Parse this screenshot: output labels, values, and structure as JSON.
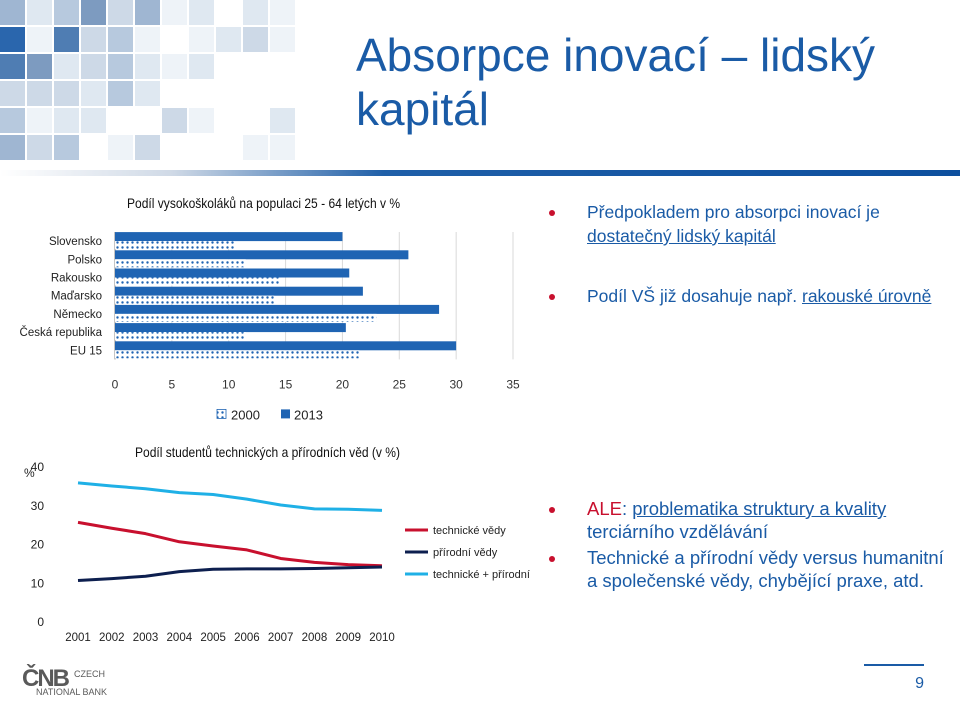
{
  "slide": {
    "title": "Absorpce inovací – lidský kapitál",
    "page_number": "9",
    "logo_text": {
      "mark": "ČNB",
      "line1": "CZECH",
      "line2": "NATIONAL BANK"
    },
    "bullets_top": [
      {
        "parts": [
          {
            "text": "Předpokladem pro absorpci inovací je ",
            "style": ""
          },
          {
            "text": "dostatečný lidský kapitál",
            "style": "u"
          }
        ]
      },
      {
        "parts": [
          {
            "text": "Podíl VŠ již dosahuje např. ",
            "style": ""
          },
          {
            "text": "rakouské úrovně",
            "style": "u"
          }
        ]
      }
    ],
    "bullets_bottom": [
      {
        "parts": [
          {
            "text": "ALE",
            "style": "red"
          },
          {
            "text": ": ",
            "style": ""
          },
          {
            "text": "problematika struktury a kvality ",
            "style": "u"
          },
          {
            "text": "terciárního vzdělávání",
            "style": ""
          }
        ]
      },
      {
        "parts": [
          {
            "text": "Technické a přírodní vědy versus humanitní a společenské vědy, chybějící praxe, atd.",
            "style": ""
          }
        ]
      }
    ],
    "colors": {
      "accent": "#1a5ba6",
      "red": "#c8102e",
      "bar_2013": "#1f64b3",
      "navy": "#0d1f4f",
      "cyan": "#1fb0e6"
    }
  },
  "chart_data": [
    {
      "type": "bar",
      "orientation": "horizontal",
      "title": "Podíl vysokoškoláků na populaci 25 - 64 letých v %",
      "categories": [
        "Slovensko",
        "Polsko",
        "Rakousko",
        "Maďarsko",
        "Německo",
        "Česká republika",
        "EU 15"
      ],
      "series": [
        {
          "name": "2000",
          "values": [
            10.5,
            11.5,
            14.5,
            14.0,
            23.0,
            11.5,
            21.5
          ],
          "pattern": "dotted"
        },
        {
          "name": "2013",
          "values": [
            20.0,
            25.8,
            20.6,
            21.8,
            28.5,
            20.3,
            30.0
          ],
          "pattern": "solid"
        }
      ],
      "xlim": [
        0,
        35
      ],
      "xticks": [
        "0",
        "5",
        "10",
        "15",
        "20",
        "25",
        "30",
        "35"
      ],
      "legend": "bottom",
      "grid": "vertical"
    },
    {
      "type": "line",
      "title": "Podíl studentů technických a přírodních věd (v %)",
      "ylabel": "%",
      "yticks": [
        "0",
        "10",
        "20",
        "30",
        "40"
      ],
      "ylim": [
        0,
        40
      ],
      "categories": [
        "2001",
        "2002",
        "2003",
        "2004",
        "2005",
        "2006",
        "2007",
        "2008",
        "2009",
        "2010"
      ],
      "series": [
        {
          "name": "technické vědy",
          "color": "#c8102e",
          "values": [
            25.7,
            24.2,
            22.8,
            20.7,
            19.6,
            18.6,
            16.4,
            15.4,
            14.8,
            14.5
          ]
        },
        {
          "name": "přírodní vědy",
          "color": "#0d1f4f",
          "values": [
            10.7,
            11.2,
            11.8,
            13.0,
            13.6,
            13.7,
            13.7,
            13.8,
            14.0,
            14.2
          ]
        },
        {
          "name": "technické + přírodní",
          "color": "#1fb0e6",
          "values": [
            35.9,
            35.1,
            34.4,
            33.4,
            32.9,
            31.7,
            30.2,
            29.2,
            29.1,
            28.8
          ]
        }
      ],
      "legend": "right",
      "grid": false
    }
  ]
}
